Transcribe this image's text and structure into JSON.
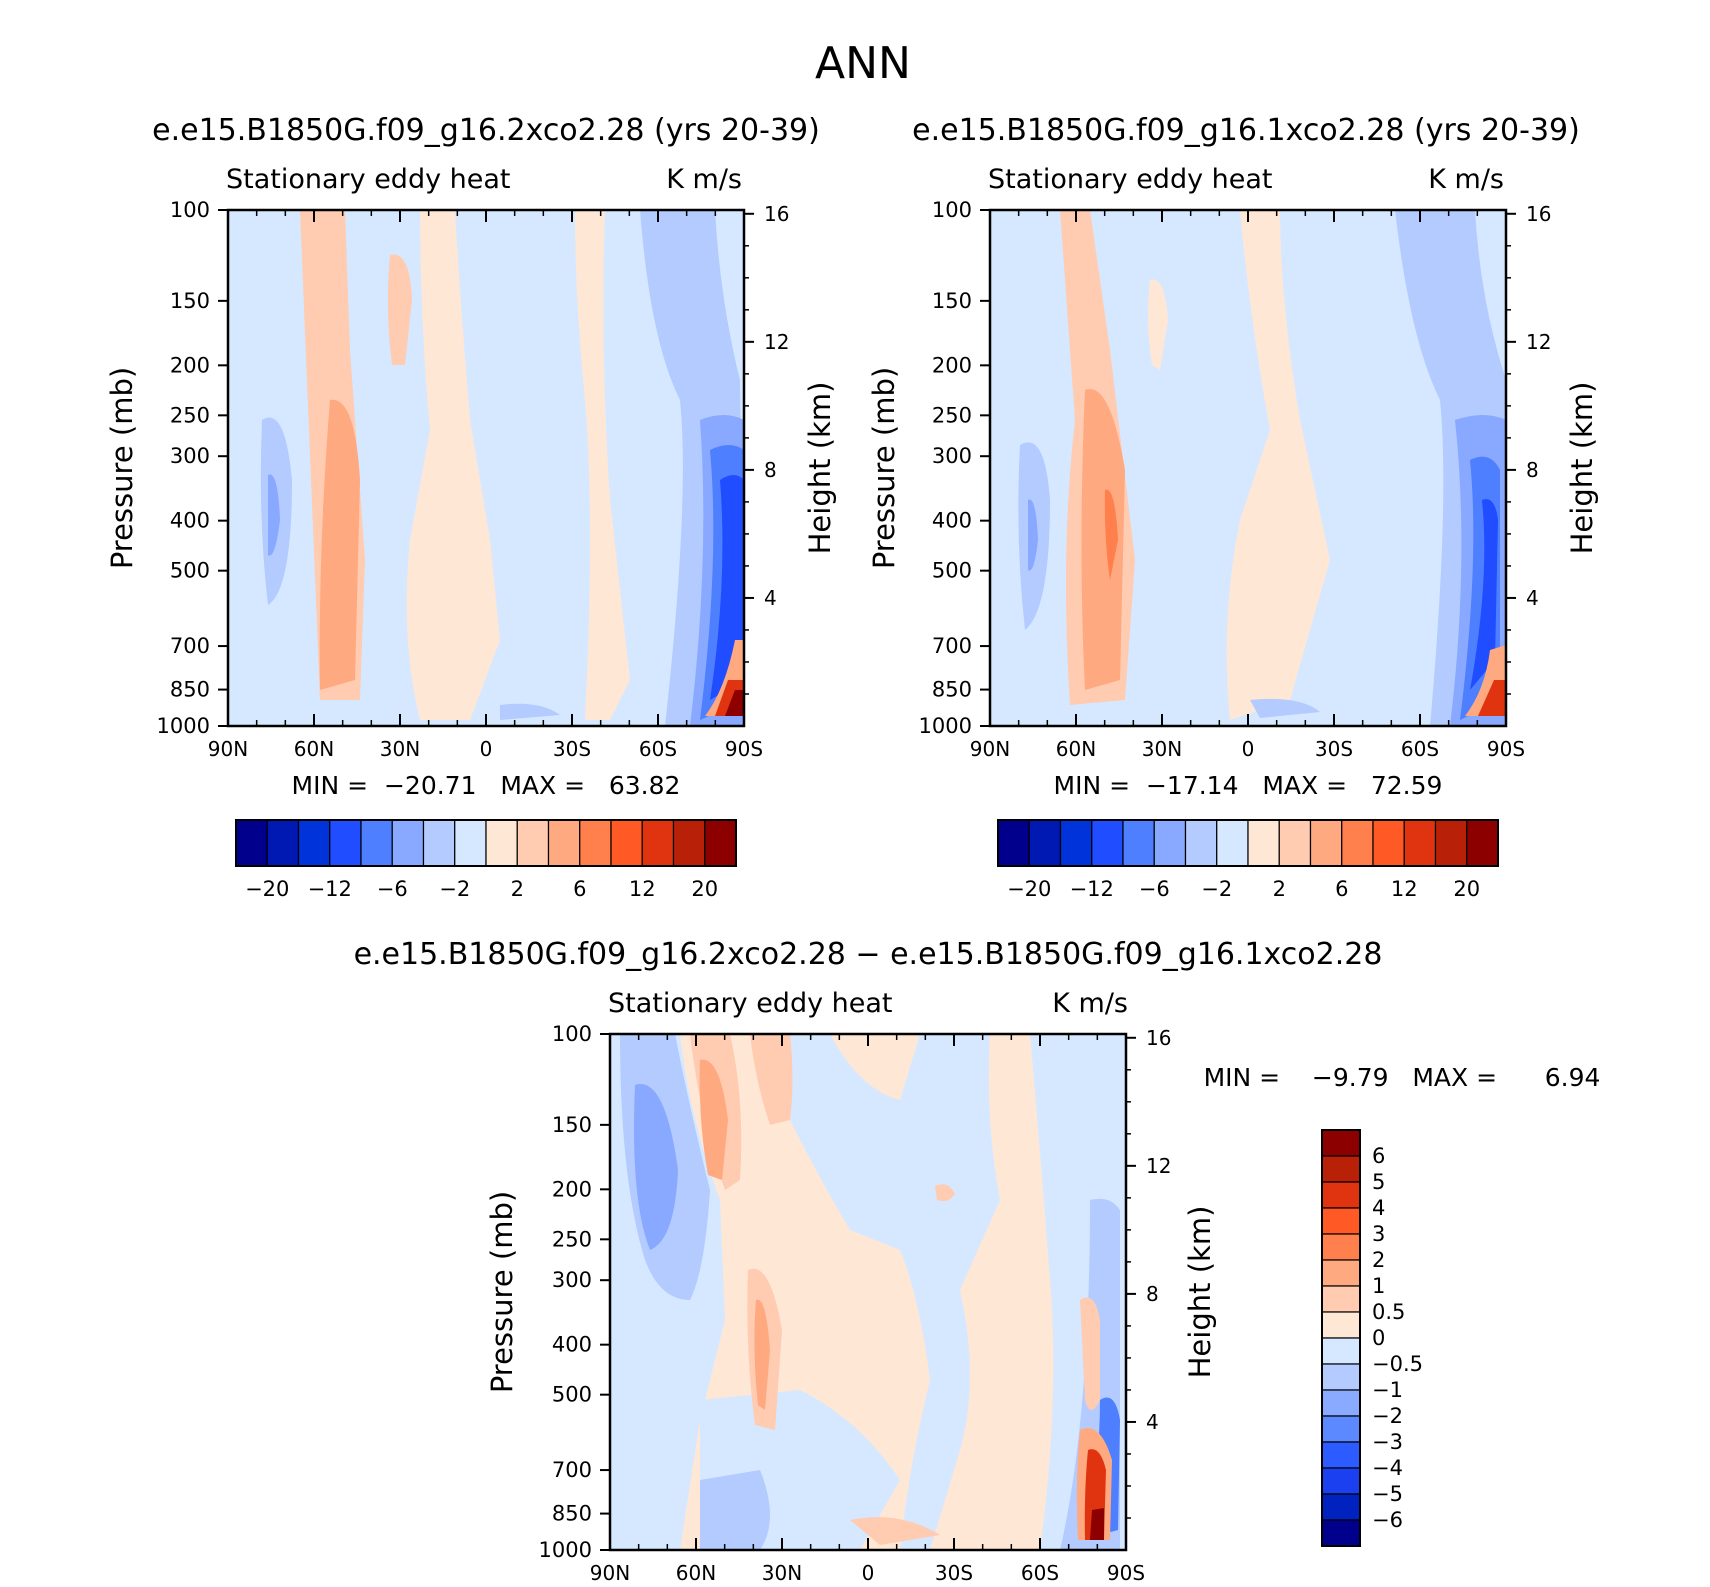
{
  "page_title": "ANN",
  "chart_data": [
    {
      "type": "heatmap",
      "id": "case1",
      "title": "e.e15.B1850G.f09_g16.2xco2.28 (yrs 20-39)",
      "subtitle_left": "Stationary eddy heat",
      "subtitle_right": "K m/s",
      "ylabel": "Pressure (mb)",
      "ylabel_right": "Height (km)",
      "x_ticks": [
        "90N",
        "60N",
        "30N",
        "0",
        "30S",
        "60S",
        "90S"
      ],
      "x_range": [
        90,
        -90
      ],
      "y_ticks": [
        100,
        150,
        200,
        250,
        300,
        400,
        500,
        700,
        850,
        1000
      ],
      "y_range": [
        100,
        1000
      ],
      "height_ticks": [
        4,
        8,
        12,
        16
      ],
      "stats": "MIN =  −20.71   MAX =   63.82",
      "min": -20.71,
      "max": 63.82,
      "contour_levels": [
        -20,
        -16,
        -12,
        -8,
        -6,
        -4,
        -2,
        -1,
        0,
        1,
        2,
        4,
        6,
        8,
        12,
        16,
        20
      ],
      "colorbar_labels": [
        "−20",
        "−12",
        "−6",
        "−2",
        "2",
        "6",
        "12",
        "20"
      ]
    },
    {
      "type": "heatmap",
      "id": "case2",
      "title": "e.e15.B1850G.f09_g16.1xco2.28 (yrs 20-39)",
      "subtitle_left": "Stationary eddy heat",
      "subtitle_right": "K m/s",
      "ylabel": "Pressure (mb)",
      "ylabel_right": "Height (km)",
      "x_ticks": [
        "90N",
        "60N",
        "30N",
        "0",
        "30S",
        "60S",
        "90S"
      ],
      "x_range": [
        90,
        -90
      ],
      "y_ticks": [
        100,
        150,
        200,
        250,
        300,
        400,
        500,
        700,
        850,
        1000
      ],
      "y_range": [
        100,
        1000
      ],
      "height_ticks": [
        4,
        8,
        12,
        16
      ],
      "stats": "MIN =  −17.14   MAX =   72.59",
      "min": -17.14,
      "max": 72.59,
      "contour_levels": [
        -20,
        -16,
        -12,
        -8,
        -6,
        -4,
        -2,
        -1,
        0,
        1,
        2,
        4,
        6,
        8,
        12,
        16,
        20
      ],
      "colorbar_labels": [
        "−20",
        "−12",
        "−6",
        "−2",
        "2",
        "6",
        "12",
        "20"
      ]
    },
    {
      "type": "heatmap",
      "id": "diff",
      "title": "e.e15.B1850G.f09_g16.2xco2.28 − e.e15.B1850G.f09_g16.1xco2.28",
      "subtitle_left": "Stationary eddy heat",
      "subtitle_right": "K m/s",
      "ylabel": "Pressure (mb)",
      "ylabel_right": "Height (km)",
      "x_ticks": [
        "90N",
        "60N",
        "30N",
        "0",
        "30S",
        "60S",
        "90S"
      ],
      "x_range": [
        90,
        -90
      ],
      "y_ticks": [
        100,
        150,
        200,
        250,
        300,
        400,
        500,
        700,
        850,
        1000
      ],
      "y_range": [
        100,
        1000
      ],
      "height_ticks": [
        4,
        8,
        12,
        16
      ],
      "stats": "MIN =    −9.79   MAX =      6.94",
      "min": -9.79,
      "max": 6.94,
      "contour_levels": [
        -6,
        -5,
        -4,
        -3,
        -2,
        -1,
        -0.5,
        0,
        0.5,
        1,
        2,
        3,
        4,
        5,
        6
      ],
      "colorbar_labels": [
        "6",
        "5",
        "4",
        "3",
        "2",
        "1",
        "0.5",
        "0",
        "−0.5",
        "−1",
        "−2",
        "−3",
        "−4",
        "−5",
        "−6"
      ]
    }
  ],
  "colors": {
    "palette16": [
      "#00008c",
      "#0019b2",
      "#0033d9",
      "#1f4dff",
      "#4d7fff",
      "#88a9ff",
      "#b3cbff",
      "#d6e8ff",
      "#ffe7d6",
      "#ffcbb1",
      "#ffa980",
      "#ff7f4d",
      "#ff5a26",
      "#e03410",
      "#b82108",
      "#8c0000"
    ],
    "palette14": [
      "#00008c",
      "#0023c0",
      "#1a40f0",
      "#2c5cff",
      "#5c89ff",
      "#8aaaff",
      "#b3cbff",
      "#d6e8ff",
      "#ffe7d6",
      "#ffcbb1",
      "#ffa980",
      "#ff7f4d",
      "#ff5a26",
      "#e03410",
      "#b82108",
      "#8c0000"
    ]
  }
}
